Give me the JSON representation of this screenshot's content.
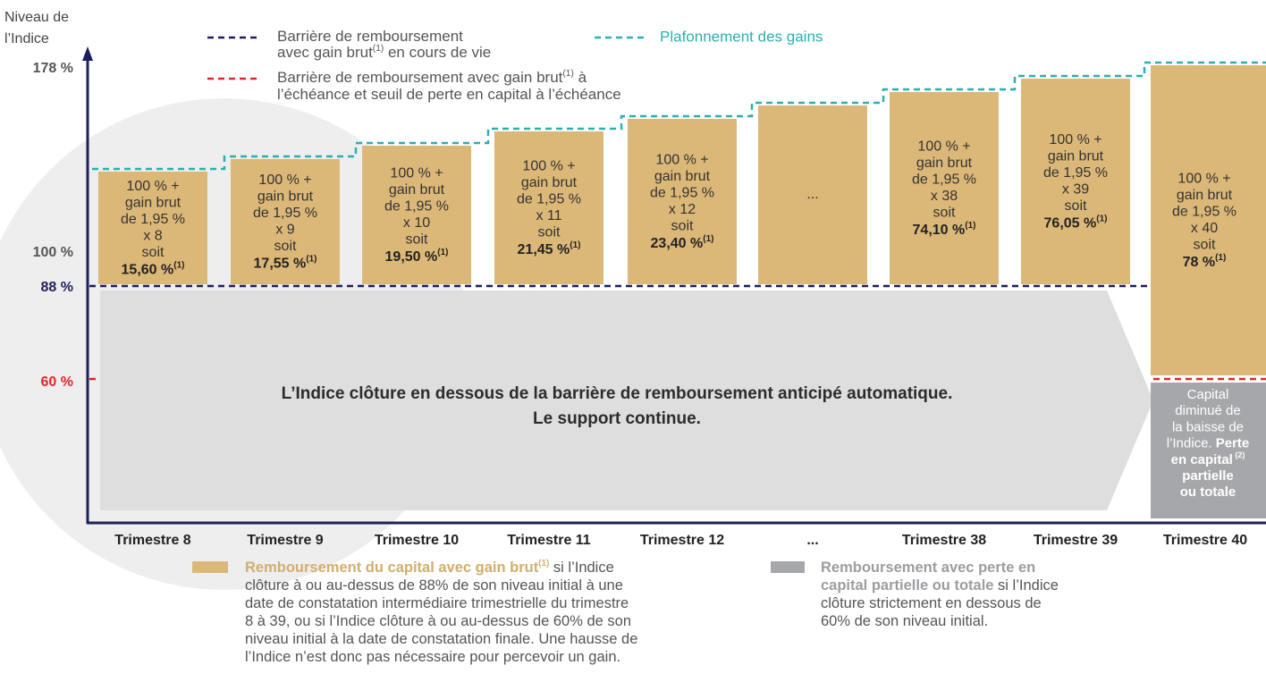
{
  "axis_title": [
    "Niveau de",
    "l’Indice"
  ],
  "levels": [
    "178 %",
    "100 %",
    "88 %",
    "60 %"
  ],
  "legend": {
    "early_barrier": [
      [
        {
          "text": "Barrière de remboursement"
        }
      ],
      [
        {
          "text": "avec gain brut"
        },
        {
          "text": "(1)",
          "sup": true
        },
        {
          "text": " en cours de vie"
        }
      ]
    ],
    "final_barrier": [
      [
        {
          "text": "Barrière de remboursement avec gain brut"
        },
        {
          "text": "(1)",
          "sup": true
        },
        {
          "text": " à"
        }
      ],
      [
        {
          "text": "l’échéance et seuil de perte en capital à l’échéance"
        }
      ]
    ],
    "cap": "Plafonnement des gains"
  },
  "arrow_text": [
    "L’Indice clôture en dessous de la barrière de remboursement anticipé automatique.",
    "Le support continue."
  ],
  "columns": [
    {
      "label": "Trimestre 8",
      "lines": [
        "100 % +",
        "gain brut",
        "de 1,95 %",
        "x 8",
        "soit"
      ],
      "result": "15,60 %",
      "note": "(1)"
    },
    {
      "label": "Trimestre 9",
      "lines": [
        "100 % +",
        "gain brut",
        "de 1,95 %",
        "x 9",
        "soit"
      ],
      "result": "17,55 %",
      "note": "(1)"
    },
    {
      "label": "Trimestre 10",
      "lines": [
        "100 % +",
        "gain brut",
        "de 1,95 %",
        "x 10",
        "soit"
      ],
      "result": "19,50 %",
      "note": "(1)"
    },
    {
      "label": "Trimestre 11",
      "lines": [
        "100 % +",
        "gain brut",
        "de 1,95 %",
        "x 11",
        "soit"
      ],
      "result": "21,45 %",
      "note": "(1)"
    },
    {
      "label": "Trimestre 12",
      "lines": [
        "100 % +",
        "gain brut",
        "de 1,95 %",
        "x 12",
        "soit"
      ],
      "result": "23,40 %",
      "note": "(1)"
    },
    {
      "label": "...",
      "lines": [
        "..."
      ]
    },
    {
      "label": "Trimestre 38",
      "lines": [
        "100 % +",
        "gain brut",
        "de 1,95 %",
        "x 38",
        "soit"
      ],
      "result": "74,10 %",
      "note": "(1)"
    },
    {
      "label": "Trimestre 39",
      "lines": [
        "100 % +",
        "gain brut",
        "de 1,95 %",
        "x 39",
        "soit"
      ],
      "result": "76,05 %",
      "note": "(1)"
    },
    {
      "label": "Trimestre 40",
      "lines": [
        "100 % +",
        "gain brut",
        "de 1,95 %",
        "x 40",
        "soit"
      ],
      "result": "78 %",
      "note": "(1)"
    }
  ],
  "loss_box": [
    [
      {
        "text": "Capital"
      }
    ],
    [
      {
        "text": "diminué de"
      }
    ],
    [
      {
        "text": "la baisse de"
      }
    ],
    [
      {
        "text": "l’Indice. "
      },
      {
        "text": "Perte",
        "bold": true
      }
    ],
    [
      {
        "text": "en capital",
        "bold": true
      },
      {
        "text": " (2)",
        "bold": true,
        "sup": true
      }
    ],
    [
      {
        "text": "partielle",
        "bold": true
      }
    ],
    [
      {
        "text": "ou totale",
        "bold": true
      }
    ]
  ],
  "footer": {
    "gain": [
      [
        {
          "text": "Remboursement du capital avec gain brut",
          "bold": true,
          "accent": true
        },
        {
          "text": "(1)",
          "bold": true,
          "sup": true,
          "accent": true
        },
        {
          "text": " si l’Indice"
        }
      ],
      [
        {
          "text": "clôture à ou au-dessus de 88% de son niveau initial à une"
        }
      ],
      [
        {
          "text": "date de constatation intermédiaire trimestrielle du trimestre"
        }
      ],
      [
        {
          "text": "8 à 39, ou si l’Indice clôture à ou au-dessus de 60% de son"
        }
      ],
      [
        {
          "text": "niveau initial à la date de constatation finale. Une hausse de"
        }
      ],
      [
        {
          "text": "l’Indice n’est donc pas nécessaire pour percevoir un gain."
        }
      ]
    ],
    "loss": [
      [
        {
          "text": "Remboursement avec perte en",
          "bold": true,
          "accent": true
        }
      ],
      [
        {
          "text": "capital partielle ou totale",
          "bold": true,
          "accent": true
        },
        {
          "text": " si l’Indice"
        }
      ],
      [
        {
          "text": "clôture strictement en dessous de"
        }
      ],
      [
        {
          "text": "60% de son niveau initial."
        }
      ]
    ]
  }
}
